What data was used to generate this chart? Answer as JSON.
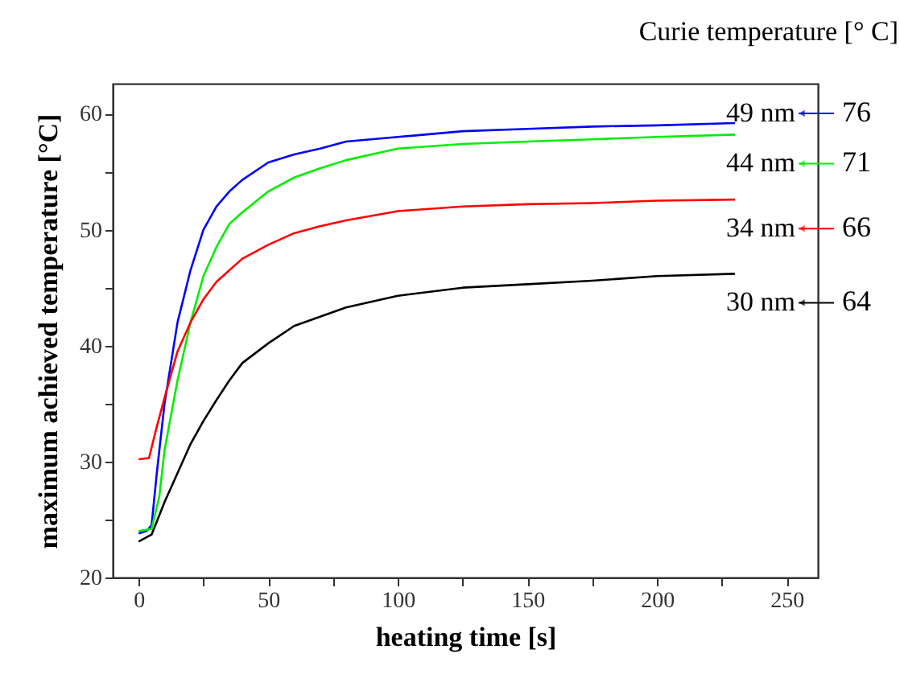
{
  "chart_data": {
    "type": "line",
    "xlabel": "heating time [s]",
    "ylabel": "maximum achieved temperature [°C]",
    "xlim": [
      -10,
      262
    ],
    "ylim": [
      20,
      62.6
    ],
    "xticks": [
      0,
      {
        "value": 25,
        "label": null
      },
      50,
      {
        "value": 75,
        "label": null
      },
      100,
      {
        "value": 125,
        "label": null
      },
      150,
      {
        "value": 175,
        "label": null
      },
      200,
      {
        "value": 225,
        "label": null
      },
      250
    ],
    "yticks": [
      20,
      {
        "value": 25,
        "label": null
      },
      30,
      {
        "value": 35,
        "label": null
      },
      40,
      {
        "value": 45,
        "label": null
      },
      50,
      {
        "value": 55,
        "label": null
      },
      60
    ],
    "grid": false,
    "legend": "right",
    "marker": "none",
    "line_style": "solid",
    "series": [
      {
        "name": "49 nm",
        "color": "#0000ff",
        "x": [
          0,
          3,
          5,
          7,
          10,
          15,
          20,
          25,
          30,
          35,
          40,
          50,
          60,
          70,
          80,
          100,
          125,
          150,
          175,
          200,
          230
        ],
        "values": [
          23.8,
          24,
          24.5,
          29,
          35,
          42,
          46.5,
          50,
          52,
          53.3,
          54.3,
          55.8,
          56.5,
          57,
          57.6,
          58,
          58.5,
          58.7,
          58.9,
          59,
          59.2
        ]
      },
      {
        "name": "44 nm",
        "color": "#00ee00",
        "x": [
          0,
          5,
          8,
          10,
          15,
          20,
          25,
          30,
          35,
          40,
          50,
          60,
          70,
          80,
          100,
          125,
          150,
          175,
          200,
          230
        ],
        "values": [
          24,
          24.2,
          27,
          31,
          37,
          42,
          46,
          48.5,
          50.5,
          51.5,
          53.3,
          54.5,
          55.3,
          56,
          57,
          57.4,
          57.6,
          57.8,
          58,
          58.2
        ]
      },
      {
        "name": "34 nm",
        "color": "#ff0000",
        "x": [
          0,
          4,
          7,
          10,
          15,
          20,
          25,
          30,
          35,
          40,
          50,
          60,
          70,
          80,
          100,
          125,
          150,
          175,
          200,
          230
        ],
        "values": [
          30.2,
          30.3,
          33,
          35.5,
          39.5,
          42,
          44,
          45.5,
          46.5,
          47.5,
          48.7,
          49.7,
          50.3,
          50.8,
          51.6,
          52,
          52.2,
          52.3,
          52.5,
          52.6
        ]
      },
      {
        "name": "30 nm",
        "color": "#000000",
        "x": [
          0,
          5,
          10,
          15,
          20,
          25,
          30,
          35,
          40,
          50,
          60,
          70,
          80,
          100,
          125,
          150,
          175,
          200,
          230
        ],
        "values": [
          23.1,
          23.7,
          26.5,
          29,
          31.5,
          33.5,
          35.3,
          37,
          38.5,
          40.2,
          41.7,
          42.5,
          43.3,
          44.3,
          45,
          45.3,
          45.6,
          46,
          46.2
        ]
      }
    ],
    "annotations": [
      "Curie temperature [° C]",
      "76",
      "71",
      "66",
      "64"
    ]
  }
}
